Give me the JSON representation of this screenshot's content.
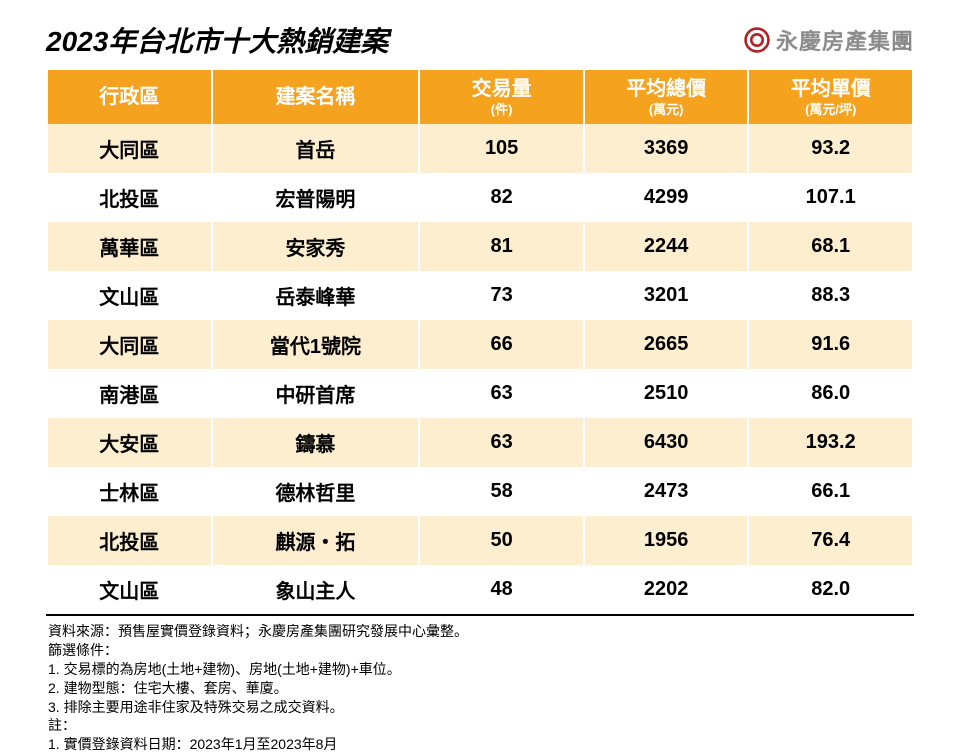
{
  "title": "2023年台北市十大熱銷建案",
  "brand": {
    "name": "永慶房產集團",
    "logo_color": "#b02225"
  },
  "table": {
    "header_bg": "#f5a21f",
    "row_odd_bg": "#fceecf",
    "row_even_bg": "#ffffff",
    "columns": [
      {
        "label": "行政區",
        "sub": ""
      },
      {
        "label": "建案名稱",
        "sub": ""
      },
      {
        "label": "交易量",
        "sub": "(件)"
      },
      {
        "label": "平均總價",
        "sub": "(萬元)"
      },
      {
        "label": "平均單價",
        "sub": "(萬元/坪)"
      }
    ],
    "rows": [
      [
        "大同區",
        "首岳",
        "105",
        "3369",
        "93.2"
      ],
      [
        "北投區",
        "宏普陽明",
        "82",
        "4299",
        "107.1"
      ],
      [
        "萬華區",
        "安家秀",
        "81",
        "2244",
        "68.1"
      ],
      [
        "文山區",
        "岳泰峰華",
        "73",
        "3201",
        "88.3"
      ],
      [
        "大同區",
        "當代1號院",
        "66",
        "2665",
        "91.6"
      ],
      [
        "南港區",
        "中研首席",
        "63",
        "2510",
        "86.0"
      ],
      [
        "大安區",
        "鑄慕",
        "63",
        "6430",
        "193.2"
      ],
      [
        "士林區",
        "德林哲里",
        "58",
        "2473",
        "66.1"
      ],
      [
        "北投區",
        "麒源・拓",
        "50",
        "1956",
        "76.4"
      ],
      [
        "文山區",
        "象山主人",
        "48",
        "2202",
        "82.0"
      ]
    ]
  },
  "notes": {
    "lines": [
      "資料來源：預售屋實價登錄資料；永慶房產集團研究發展中心彙整。",
      "篩選條件：",
      "1. 交易標的為房地(土地+建物)、房地(土地+建物)+車位。",
      "2. 建物型態：住宅大樓、套房、華廈。",
      "3. 排除主要用途非住家及特殊交易之成交資料。",
      "註：",
      "1. 實價登錄資料日期：2023年1月至2023年8月"
    ]
  }
}
